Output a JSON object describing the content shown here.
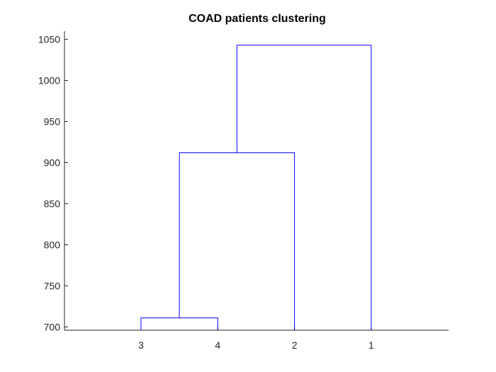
{
  "chart_data": {
    "type": "dendrogram",
    "title": "COAD patients clustering",
    "xlabel": "",
    "ylabel": "",
    "leaf_order": [
      "3",
      "4",
      "2",
      "1"
    ],
    "merges": [
      {
        "left": "3",
        "right": "4",
        "height": 711
      },
      {
        "left": "3+4",
        "right": "2",
        "height": 912
      },
      {
        "left": "3+4+2",
        "right": "1",
        "height": 1043
      }
    ],
    "ylim": [
      696,
      1060
    ],
    "yticks": [
      700,
      750,
      800,
      850,
      900,
      950,
      1000,
      1050
    ],
    "grid": false,
    "line_color": "#0000ff",
    "axis_color": "#262626"
  }
}
